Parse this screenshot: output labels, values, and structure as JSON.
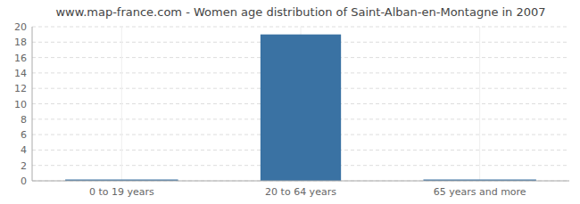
{
  "chart_data": {
    "type": "bar",
    "title": "www.map-france.com - Women age distribution of Saint-Alban-en-Montagne in 2007",
    "categories": [
      "0 to 19 years",
      "20 to 64 years",
      "65 years and more"
    ],
    "values": [
      0,
      19,
      0
    ],
    "color": "#3a72a3",
    "ylim": [
      0,
      20
    ],
    "yticks": [
      0,
      2,
      4,
      6,
      8,
      10,
      12,
      14,
      16,
      18,
      20
    ],
    "grid": true
  }
}
